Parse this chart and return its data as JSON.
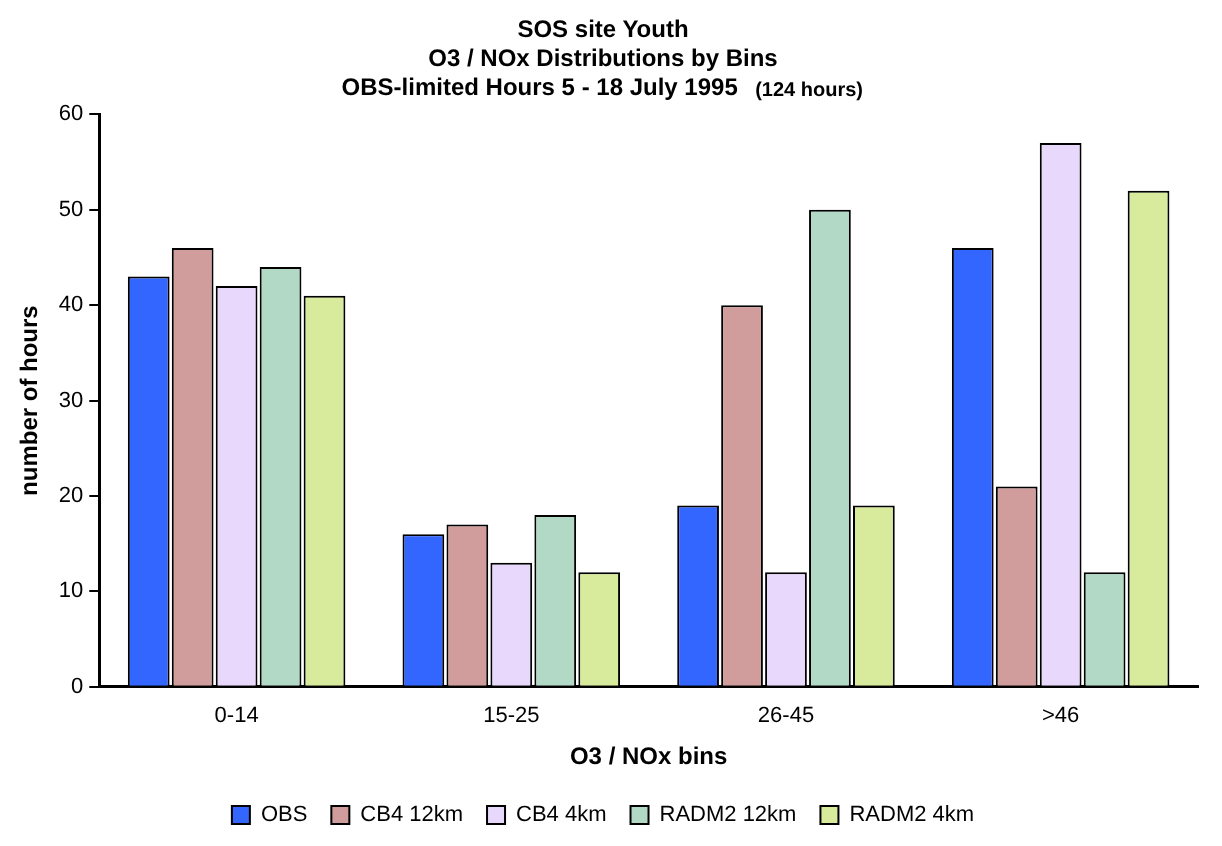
{
  "chart_data": {
    "type": "bar",
    "title": "SOS site Youth\nO3 / NOx Distributions by Bins\nOBS-limited Hours 5 - 18 July 1995",
    "subtitle": "(124 hours)",
    "xlabel": "O3 / NOx bins",
    "ylabel": "number of hours",
    "categories": [
      "0-14",
      "15-25",
      "26-45",
      ">46"
    ],
    "series": [
      {
        "name": "OBS",
        "color": "#3366ff",
        "values": [
          43,
          16,
          19,
          46
        ]
      },
      {
        "name": "CB4 12km",
        "color": "#d09c9c",
        "values": [
          46,
          17,
          40,
          21
        ]
      },
      {
        "name": "CB4 4km",
        "color": "#e8d8fc",
        "values": [
          42,
          13,
          12,
          57
        ]
      },
      {
        "name": "RADM2 12km",
        "color": "#b2d8c6",
        "values": [
          44,
          18,
          50,
          12
        ]
      },
      {
        "name": "RADM2 4km",
        "color": "#d8ea9c",
        "values": [
          41,
          12,
          19,
          52
        ]
      }
    ],
    "ylim": [
      0,
      60
    ],
    "yticks": [
      0,
      10,
      20,
      30,
      40,
      50,
      60
    ],
    "grid": false,
    "legend": "bottom"
  }
}
